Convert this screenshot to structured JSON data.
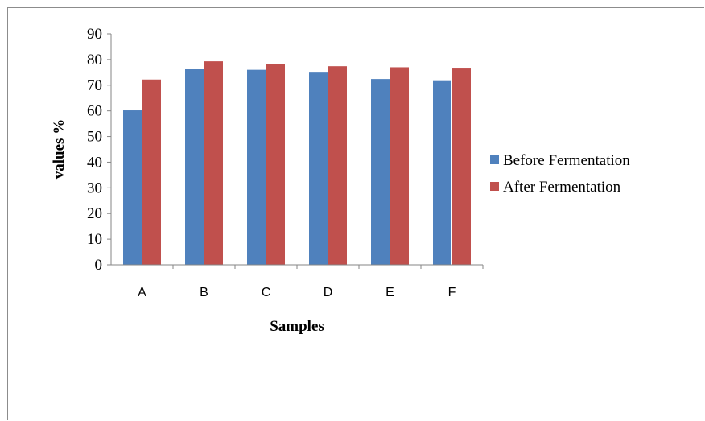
{
  "chart_data": {
    "type": "bar",
    "categories": [
      "A",
      "B",
      "C",
      "D",
      "E",
      "F"
    ],
    "series": [
      {
        "name": "Before Fermentation",
        "color": "#4f81bd",
        "values": [
          60.2,
          76.2,
          76.0,
          74.9,
          72.4,
          71.6
        ]
      },
      {
        "name": "After Fermentation",
        "color": "#c0504d",
        "values": [
          72.2,
          79.3,
          78.1,
          77.4,
          77.0,
          76.5
        ]
      }
    ],
    "xlabel": "Samples",
    "ylabel": "values %",
    "ylim": [
      0,
      90
    ],
    "yticks": [
      0,
      10,
      20,
      30,
      40,
      50,
      60,
      70,
      80,
      90
    ],
    "grid": false,
    "legend_position": "right"
  }
}
